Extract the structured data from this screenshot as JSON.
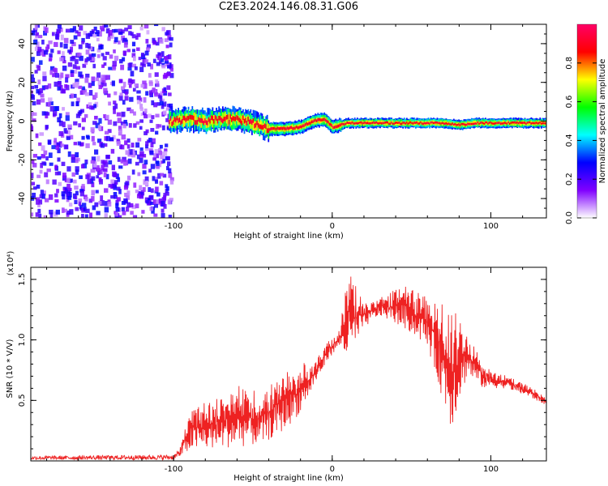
{
  "title": "C2E3.2024.146.08.31.G06",
  "chart_data": [
    {
      "type": "heatmap",
      "title": "C2E3.2024.146.08.31.G06",
      "xlabel": "Height of straight line (km)",
      "ylabel": "Frequency (Hz)",
      "xlim": [
        -190,
        135
      ],
      "ylim": [
        -50,
        50
      ],
      "x_ticks": [
        -100,
        0,
        100
      ],
      "y_ticks": [
        -40,
        -20,
        0,
        20,
        40
      ],
      "colorbar": {
        "label": "Normalized spectral amplitude",
        "range": [
          0,
          1
        ],
        "ticks": [
          0.0,
          0.2,
          0.4,
          0.6,
          0.8
        ],
        "colors": [
          "#ffffff",
          "#8000ff",
          "#0000ff",
          "#00ffff",
          "#00ff00",
          "#ffff00",
          "#ff0000",
          "#ff0066"
        ]
      },
      "regions": [
        {
          "name": "noise",
          "x_range": [
            -190,
            -103
          ],
          "freq_range": [
            -50,
            50
          ],
          "amplitude_range": [
            0.05,
            0.3
          ]
        },
        {
          "name": "signal",
          "x_range": [
            -103,
            135
          ],
          "amplitude_range": [
            0.3,
            1.0
          ]
        }
      ],
      "signal_center_frequency": [
        {
          "x": -100,
          "y": 0
        },
        {
          "x": -90,
          "y": 1
        },
        {
          "x": -80,
          "y": 0
        },
        {
          "x": -70,
          "y": 1
        },
        {
          "x": -60,
          "y": 1
        },
        {
          "x": -50,
          "y": -1
        },
        {
          "x": -40,
          "y": -4
        },
        {
          "x": -30,
          "y": -4
        },
        {
          "x": -20,
          "y": -3
        },
        {
          "x": -12,
          "y": 0
        },
        {
          "x": -5,
          "y": 1
        },
        {
          "x": 0,
          "y": -3
        },
        {
          "x": 10,
          "y": -1
        },
        {
          "x": 30,
          "y": -1
        },
        {
          "x": 60,
          "y": -1
        },
        {
          "x": 70,
          "y": -1
        },
        {
          "x": 80,
          "y": -2
        },
        {
          "x": 90,
          "y": -1
        },
        {
          "x": 100,
          "y": -1
        },
        {
          "x": 135,
          "y": -1
        }
      ]
    },
    {
      "type": "line",
      "xlabel": "Height of straight line (km)",
      "ylabel": "SNR (10 * V/V)",
      "y_multiplier": "(x10⁴)",
      "xlim": [
        -190,
        135
      ],
      "ylim": [
        0,
        16000
      ],
      "x_ticks": [
        -100,
        0,
        100
      ],
      "y_tick_labels": [
        "0.5",
        "1.0",
        "1.5"
      ],
      "y_ticks": [
        5000,
        10000,
        15000
      ],
      "series": [
        {
          "color": "#ee2222",
          "envelope": [
            {
              "x": -190,
              "low": 100,
              "high": 400
            },
            {
              "x": -100,
              "low": 100,
              "high": 500
            },
            {
              "x": -96,
              "low": 300,
              "high": 1000
            },
            {
              "x": -90,
              "low": 800,
              "high": 4500
            },
            {
              "x": -75,
              "low": 1000,
              "high": 5000
            },
            {
              "x": -55,
              "low": 1200,
              "high": 6600
            },
            {
              "x": -45,
              "low": 1300,
              "high": 5500
            },
            {
              "x": -30,
              "low": 2500,
              "high": 7500
            },
            {
              "x": -20,
              "low": 4000,
              "high": 8000
            },
            {
              "x": -10,
              "low": 6500,
              "high": 8500
            },
            {
              "x": -2,
              "low": 8500,
              "high": 10000
            },
            {
              "x": 5,
              "low": 9500,
              "high": 11000
            },
            {
              "x": 10,
              "low": 8000,
              "high": 16000
            },
            {
              "x": 20,
              "low": 11000,
              "high": 13000
            },
            {
              "x": 30,
              "low": 12000,
              "high": 13500
            },
            {
              "x": 45,
              "low": 11000,
              "high": 14500
            },
            {
              "x": 60,
              "low": 9500,
              "high": 13500
            },
            {
              "x": 75,
              "low": 2600,
              "high": 13000
            },
            {
              "x": 85,
              "low": 7000,
              "high": 11000
            },
            {
              "x": 95,
              "low": 6000,
              "high": 8000
            },
            {
              "x": 110,
              "low": 6000,
              "high": 7000
            },
            {
              "x": 125,
              "low": 5200,
              "high": 6200
            },
            {
              "x": 135,
              "low": 4600,
              "high": 5200
            }
          ]
        }
      ]
    }
  ]
}
